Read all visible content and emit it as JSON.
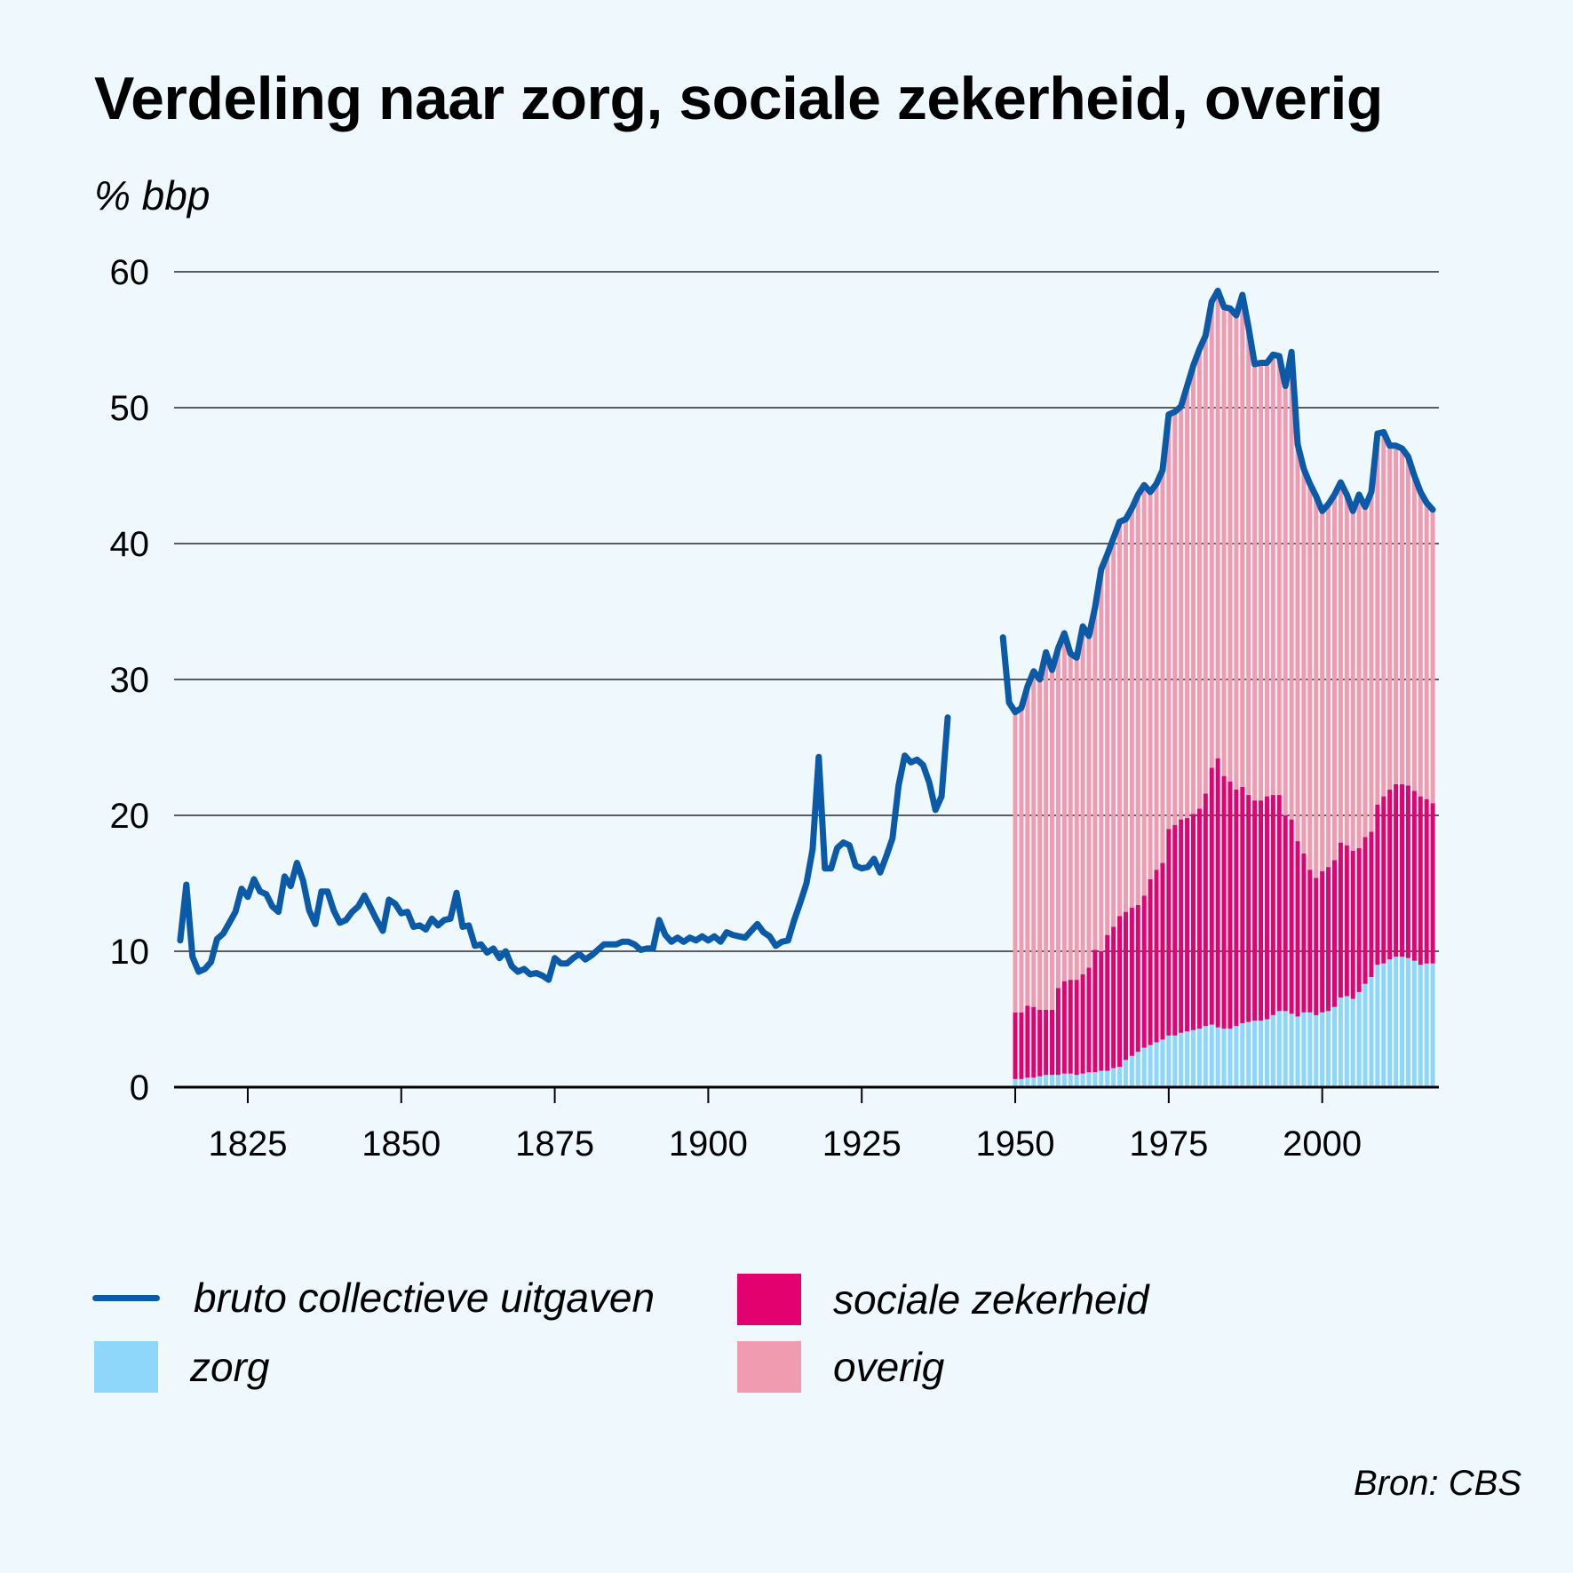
{
  "title": "Verdeling naar zorg, sociale zekerheid, overig",
  "source": "Bron: CBS",
  "chart_data": {
    "type": "bar+line",
    "ylabel": "% bbp",
    "ylim": [
      0,
      60
    ],
    "xlim": [
      1813,
      2019
    ],
    "y_ticks": [
      "0",
      "10",
      "20",
      "30",
      "40",
      "50",
      "60"
    ],
    "x_ticks": [
      "1825",
      "1850",
      "1875",
      "1900",
      "1925",
      "1950",
      "1975",
      "2000"
    ],
    "grid": "horizontal",
    "legend_placement": "bottom",
    "legend": [
      {
        "key": "line",
        "label": "bruto collectieve uitgaven",
        "color": "#0a5aa8"
      },
      {
        "key": "zorg",
        "label": "zorg",
        "color": "#8fd6fb"
      },
      {
        "key": "soc",
        "label": "sociale zekerheid",
        "color": "#e3006f"
      },
      {
        "key": "overig",
        "label": "overig",
        "color": "#f19bb1"
      }
    ],
    "line_series": {
      "name": "bruto collectieve uitgaven",
      "color": "#0a5aa8",
      "segments": [
        [
          [
            1814,
            10.8
          ],
          [
            1815,
            14.9
          ],
          [
            1816,
            9.6
          ],
          [
            1817,
            8.5
          ],
          [
            1818,
            8.7
          ],
          [
            1819,
            9.2
          ],
          [
            1820,
            10.9
          ],
          [
            1821,
            11.3
          ],
          [
            1822,
            12.1
          ],
          [
            1823,
            12.9
          ],
          [
            1824,
            14.6
          ],
          [
            1825,
            14.0
          ],
          [
            1826,
            15.3
          ],
          [
            1827,
            14.4
          ],
          [
            1828,
            14.2
          ],
          [
            1829,
            13.3
          ],
          [
            1830,
            12.9
          ],
          [
            1831,
            15.5
          ],
          [
            1832,
            14.8
          ],
          [
            1833,
            16.5
          ],
          [
            1834,
            15.2
          ],
          [
            1835,
            13.0
          ],
          [
            1836,
            12.0
          ],
          [
            1837,
            14.4
          ],
          [
            1838,
            14.4
          ],
          [
            1839,
            13.0
          ],
          [
            1840,
            12.1
          ],
          [
            1841,
            12.3
          ],
          [
            1842,
            12.9
          ],
          [
            1843,
            13.3
          ],
          [
            1844,
            14.1
          ],
          [
            1845,
            13.2
          ],
          [
            1846,
            12.3
          ],
          [
            1847,
            11.5
          ],
          [
            1848,
            13.8
          ],
          [
            1849,
            13.5
          ],
          [
            1850,
            12.8
          ],
          [
            1851,
            12.9
          ],
          [
            1852,
            11.8
          ],
          [
            1853,
            11.9
          ],
          [
            1854,
            11.6
          ],
          [
            1855,
            12.4
          ],
          [
            1856,
            11.9
          ],
          [
            1857,
            12.3
          ],
          [
            1858,
            12.4
          ],
          [
            1859,
            14.3
          ],
          [
            1860,
            11.8
          ],
          [
            1861,
            11.9
          ],
          [
            1862,
            10.4
          ],
          [
            1863,
            10.5
          ],
          [
            1864,
            9.9
          ],
          [
            1865,
            10.2
          ],
          [
            1866,
            9.5
          ],
          [
            1867,
            10.0
          ],
          [
            1868,
            8.9
          ],
          [
            1869,
            8.5
          ],
          [
            1870,
            8.7
          ],
          [
            1871,
            8.3
          ],
          [
            1872,
            8.4
          ],
          [
            1873,
            8.2
          ],
          [
            1874,
            7.9
          ],
          [
            1875,
            9.5
          ],
          [
            1876,
            9.1
          ],
          [
            1877,
            9.1
          ],
          [
            1878,
            9.5
          ],
          [
            1879,
            9.8
          ],
          [
            1880,
            9.4
          ],
          [
            1881,
            9.7
          ],
          [
            1882,
            10.1
          ],
          [
            1883,
            10.5
          ],
          [
            1884,
            10.5
          ],
          [
            1885,
            10.5
          ],
          [
            1886,
            10.7
          ],
          [
            1887,
            10.7
          ],
          [
            1888,
            10.5
          ],
          [
            1889,
            10.1
          ],
          [
            1890,
            10.2
          ],
          [
            1891,
            10.2
          ],
          [
            1892,
            12.3
          ],
          [
            1893,
            11.2
          ],
          [
            1894,
            10.7
          ],
          [
            1895,
            11.0
          ],
          [
            1896,
            10.7
          ],
          [
            1897,
            11.0
          ],
          [
            1898,
            10.8
          ],
          [
            1899,
            11.1
          ],
          [
            1900,
            10.8
          ],
          [
            1901,
            11.1
          ],
          [
            1902,
            10.7
          ],
          [
            1903,
            11.4
          ],
          [
            1904,
            11.2
          ],
          [
            1905,
            11.1
          ],
          [
            1906,
            11.0
          ],
          [
            1907,
            11.5
          ],
          [
            1908,
            12.0
          ],
          [
            1909,
            11.4
          ],
          [
            1910,
            11.1
          ],
          [
            1911,
            10.4
          ],
          [
            1912,
            10.7
          ],
          [
            1913,
            10.8
          ],
          [
            1914,
            12.3
          ],
          [
            1915,
            13.6
          ],
          [
            1916,
            15.0
          ],
          [
            1917,
            17.5
          ],
          [
            1918,
            24.3
          ],
          [
            1919,
            16.1
          ],
          [
            1920,
            16.1
          ],
          [
            1921,
            17.6
          ],
          [
            1922,
            18.0
          ],
          [
            1923,
            17.8
          ],
          [
            1924,
            16.3
          ],
          [
            1925,
            16.1
          ],
          [
            1926,
            16.2
          ],
          [
            1927,
            16.8
          ],
          [
            1928,
            15.8
          ],
          [
            1929,
            17.0
          ],
          [
            1930,
            18.3
          ],
          [
            1931,
            22.2
          ],
          [
            1932,
            24.4
          ],
          [
            1933,
            23.9
          ],
          [
            1934,
            24.1
          ],
          [
            1935,
            23.7
          ],
          [
            1936,
            22.4
          ],
          [
            1937,
            20.4
          ],
          [
            1938,
            21.4
          ],
          [
            1939,
            27.2
          ]
        ],
        [
          [
            1948,
            33.1
          ],
          [
            1949,
            28.3
          ],
          [
            1950,
            27.6
          ],
          [
            1951,
            27.9
          ],
          [
            1952,
            29.5
          ],
          [
            1953,
            30.6
          ],
          [
            1954,
            30.0
          ],
          [
            1955,
            32.0
          ],
          [
            1956,
            30.7
          ],
          [
            1957,
            32.3
          ],
          [
            1958,
            33.4
          ],
          [
            1959,
            31.9
          ],
          [
            1960,
            31.6
          ],
          [
            1961,
            33.9
          ],
          [
            1962,
            33.2
          ],
          [
            1963,
            35.3
          ],
          [
            1964,
            38.1
          ],
          [
            1965,
            39.2
          ],
          [
            1966,
            40.4
          ],
          [
            1967,
            41.6
          ],
          [
            1968,
            41.8
          ],
          [
            1969,
            42.6
          ],
          [
            1970,
            43.6
          ],
          [
            1971,
            44.3
          ],
          [
            1972,
            43.8
          ],
          [
            1973,
            44.4
          ],
          [
            1974,
            45.4
          ],
          [
            1975,
            49.5
          ],
          [
            1976,
            49.7
          ],
          [
            1977,
            50.1
          ],
          [
            1978,
            51.6
          ],
          [
            1979,
            53.1
          ],
          [
            1980,
            54.3
          ],
          [
            1981,
            55.3
          ],
          [
            1982,
            57.8
          ],
          [
            1983,
            58.6
          ],
          [
            1984,
            57.4
          ],
          [
            1985,
            57.3
          ],
          [
            1986,
            56.8
          ],
          [
            1987,
            58.3
          ],
          [
            1988,
            55.9
          ],
          [
            1989,
            53.2
          ],
          [
            1990,
            53.3
          ],
          [
            1991,
            53.3
          ],
          [
            1992,
            53.9
          ],
          [
            1993,
            53.8
          ],
          [
            1994,
            51.6
          ],
          [
            1995,
            54.1
          ],
          [
            1996,
            47.3
          ],
          [
            1997,
            45.5
          ],
          [
            1998,
            44.4
          ],
          [
            1999,
            43.5
          ],
          [
            2000,
            42.4
          ],
          [
            2001,
            42.9
          ],
          [
            2002,
            43.6
          ],
          [
            2003,
            44.5
          ],
          [
            2004,
            43.6
          ],
          [
            2005,
            42.4
          ],
          [
            2006,
            43.6
          ],
          [
            2007,
            42.7
          ],
          [
            2008,
            43.8
          ],
          [
            2009,
            48.1
          ],
          [
            2010,
            48.2
          ],
          [
            2011,
            47.2
          ],
          [
            2012,
            47.2
          ],
          [
            2013,
            47.0
          ],
          [
            2014,
            46.4
          ],
          [
            2015,
            45.0
          ],
          [
            2016,
            43.8
          ],
          [
            2017,
            43.0
          ],
          [
            2018,
            42.5
          ]
        ]
      ]
    },
    "stacked_bars": {
      "years": [
        1950,
        1951,
        1952,
        1953,
        1954,
        1955,
        1956,
        1957,
        1958,
        1959,
        1960,
        1961,
        1962,
        1963,
        1964,
        1965,
        1966,
        1967,
        1968,
        1969,
        1970,
        1971,
        1972,
        1973,
        1974,
        1975,
        1976,
        1977,
        1978,
        1979,
        1980,
        1981,
        1982,
        1983,
        1984,
        1985,
        1986,
        1987,
        1988,
        1989,
        1990,
        1991,
        1992,
        1993,
        1994,
        1995,
        1996,
        1997,
        1998,
        1999,
        2000,
        2001,
        2002,
        2003,
        2004,
        2005,
        2006,
        2007,
        2008,
        2009,
        2010,
        2011,
        2012,
        2013,
        2014,
        2015,
        2016,
        2017,
        2018
      ],
      "series": [
        {
          "name": "zorg",
          "color": "#8fd6fb",
          "values": [
            0.6,
            0.6,
            0.7,
            0.7,
            0.8,
            0.9,
            0.9,
            0.9,
            1.0,
            1.0,
            0.9,
            1.0,
            1.1,
            1.1,
            1.2,
            1.2,
            1.4,
            1.5,
            2.0,
            2.3,
            2.6,
            2.9,
            3.1,
            3.3,
            3.5,
            3.8,
            3.8,
            4.0,
            4.1,
            4.2,
            4.3,
            4.5,
            4.6,
            4.4,
            4.3,
            4.3,
            4.5,
            4.7,
            4.8,
            4.9,
            4.9,
            5.0,
            5.3,
            5.6,
            5.6,
            5.4,
            5.2,
            5.5,
            5.5,
            5.3,
            5.5,
            5.6,
            5.9,
            6.6,
            6.7,
            6.5,
            7.0,
            7.6,
            8.1,
            9.0,
            9.1,
            9.4,
            9.6,
            9.6,
            9.5,
            9.3,
            9.0,
            9.1,
            9.1
          ]
        },
        {
          "name": "sociale zekerheid",
          "color": "#e3006f",
          "values": [
            4.9,
            4.9,
            5.3,
            5.2,
            4.9,
            4.8,
            4.8,
            6.4,
            6.8,
            6.9,
            7.0,
            7.3,
            7.7,
            9.0,
            8.8,
            10.0,
            10.4,
            11.1,
            10.9,
            10.9,
            10.8,
            11.2,
            12.2,
            12.7,
            13.0,
            15.2,
            15.5,
            15.7,
            15.7,
            15.9,
            16.2,
            17.1,
            18.9,
            19.8,
            18.6,
            18.2,
            17.4,
            17.4,
            16.7,
            16.2,
            16.2,
            16.4,
            16.2,
            15.9,
            14.4,
            14.3,
            12.9,
            11.7,
            10.5,
            10.1,
            10.4,
            10.6,
            10.8,
            11.4,
            11.1,
            10.9,
            10.6,
            10.8,
            10.7,
            11.8,
            12.3,
            12.5,
            12.7,
            12.7,
            12.7,
            12.5,
            12.4,
            12.1,
            11.8
          ]
        },
        {
          "name": "overig",
          "color": "#f19bb1",
          "values": [
            22.1,
            22.4,
            23.5,
            24.7,
            24.3,
            26.3,
            25.0,
            25.0,
            25.6,
            24.0,
            23.7,
            25.6,
            24.4,
            25.2,
            28.1,
            28.0,
            28.6,
            29.0,
            28.9,
            29.4,
            30.2,
            30.2,
            28.5,
            28.4,
            28.9,
            30.5,
            30.4,
            30.4,
            31.8,
            33.0,
            33.8,
            33.7,
            34.3,
            34.4,
            34.5,
            34.8,
            34.9,
            36.2,
            34.4,
            32.1,
            32.2,
            31.9,
            32.4,
            32.3,
            31.6,
            34.4,
            29.2,
            28.3,
            28.4,
            28.1,
            26.5,
            26.7,
            26.9,
            26.5,
            25.8,
            25.0,
            26.0,
            24.3,
            25.0,
            27.3,
            26.8,
            25.3,
            24.9,
            24.7,
            24.2,
            23.2,
            22.4,
            21.8,
            21.6
          ]
        }
      ]
    }
  }
}
